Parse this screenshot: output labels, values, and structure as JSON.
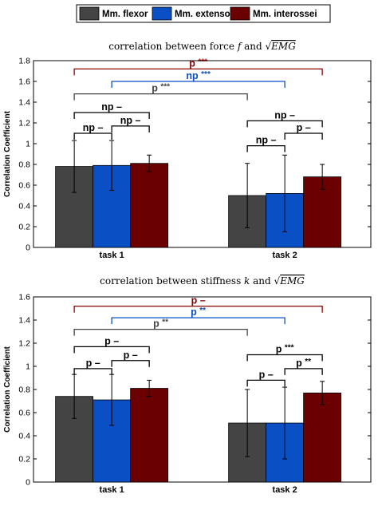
{
  "legend": {
    "entries": [
      {
        "label": "Mm. flexor",
        "color": "#444444"
      },
      {
        "label": "Mm. extensor",
        "color": "#0a4fc4"
      },
      {
        "label": "Mm. interossei",
        "color": "#6b0000"
      }
    ]
  },
  "chart_data": [
    {
      "type": "bar",
      "title": {
        "prefix": "correlation between force ",
        "var": "f",
        "mid": " and ",
        "sqrt": "√",
        "sqrt_arg": "EMG"
      },
      "ylabel": "Correlation Coefficient",
      "ylim": [
        0,
        1.8
      ],
      "yticks": [
        "0",
        "0.2",
        "0.4",
        "0.6",
        "0.8",
        "1",
        "1.2",
        "1.4",
        "1.6",
        "1.8"
      ],
      "categories": [
        "task 1",
        "task 2"
      ],
      "series": [
        {
          "name": "Mm. flexor",
          "values": [
            0.78,
            0.5
          ],
          "err": [
            0.25,
            0.31
          ]
        },
        {
          "name": "Mm. extensor",
          "values": [
            0.79,
            0.52
          ],
          "err": [
            0.24,
            0.37
          ]
        },
        {
          "name": "Mm. interossei",
          "values": [
            0.81,
            0.68
          ],
          "err": [
            0.08,
            0.12
          ]
        }
      ],
      "brackets": [
        {
          "from": [
            0,
            0
          ],
          "to": [
            1,
            2
          ],
          "level": 1.72,
          "test": "p",
          "stars": "***",
          "color": "#8b0000"
        },
        {
          "from": [
            0,
            1
          ],
          "to": [
            1,
            1
          ],
          "level": 1.6,
          "test": "np",
          "stars": "***",
          "color": "#0a4fc4"
        },
        {
          "from": [
            0,
            0
          ],
          "to": [
            1,
            0
          ],
          "level": 1.48,
          "test": "p",
          "stars": "***",
          "color": "#444444"
        },
        {
          "from": [
            0,
            0
          ],
          "to": [
            0,
            2
          ],
          "level": 1.3,
          "test": "np",
          "stars": "–",
          "color": "#000000"
        },
        {
          "from": [
            0,
            1
          ],
          "to": [
            0,
            2
          ],
          "level": 1.17,
          "test": "np",
          "stars": "–",
          "color": "#000000"
        },
        {
          "from": [
            0,
            0
          ],
          "to": [
            0,
            1
          ],
          "level": 1.1,
          "test": "np",
          "stars": "–",
          "color": "#000000"
        },
        {
          "from": [
            1,
            0
          ],
          "to": [
            1,
            2
          ],
          "level": 1.22,
          "test": "np",
          "stars": "–",
          "color": "#000000"
        },
        {
          "from": [
            1,
            1
          ],
          "to": [
            1,
            2
          ],
          "level": 1.1,
          "test": "p",
          "stars": "–",
          "color": "#000000"
        },
        {
          "from": [
            1,
            0
          ],
          "to": [
            1,
            1
          ],
          "level": 0.98,
          "test": "np",
          "stars": "–",
          "color": "#000000"
        }
      ]
    },
    {
      "type": "bar",
      "title": {
        "prefix": "correlation between stiffness ",
        "var": "k",
        "mid": " and ",
        "sqrt": "√",
        "sqrt_arg": "EMG"
      },
      "ylabel": "Correlation Coefficient",
      "ylim": [
        0,
        1.6
      ],
      "yticks": [
        "0",
        "0.2",
        "0.4",
        "0.6",
        "0.8",
        "1",
        "1.2",
        "1.4",
        "1.6"
      ],
      "categories": [
        "task 1",
        "task 2"
      ],
      "series": [
        {
          "name": "Mm. flexor",
          "values": [
            0.74,
            0.51
          ],
          "err": [
            0.19,
            0.29
          ]
        },
        {
          "name": "Mm. extensor",
          "values": [
            0.71,
            0.51
          ],
          "err": [
            0.22,
            0.31
          ]
        },
        {
          "name": "Mm. interossei",
          "values": [
            0.81,
            0.77
          ],
          "err": [
            0.07,
            0.1
          ]
        }
      ],
      "brackets": [
        {
          "from": [
            0,
            0
          ],
          "to": [
            1,
            2
          ],
          "level": 1.52,
          "test": "p",
          "stars": "–",
          "color": "#8b0000"
        },
        {
          "from": [
            0,
            1
          ],
          "to": [
            1,
            1
          ],
          "level": 1.42,
          "test": "p",
          "stars": "**",
          "color": "#0a4fc4"
        },
        {
          "from": [
            0,
            0
          ],
          "to": [
            1,
            0
          ],
          "level": 1.32,
          "test": "p",
          "stars": "**",
          "color": "#444444"
        },
        {
          "from": [
            0,
            0
          ],
          "to": [
            0,
            2
          ],
          "level": 1.17,
          "test": "p",
          "stars": "–",
          "color": "#000000"
        },
        {
          "from": [
            0,
            1
          ],
          "to": [
            0,
            2
          ],
          "level": 1.05,
          "test": "p",
          "stars": "–",
          "color": "#000000"
        },
        {
          "from": [
            0,
            0
          ],
          "to": [
            0,
            1
          ],
          "level": 0.98,
          "test": "p",
          "stars": "–",
          "color": "#000000"
        },
        {
          "from": [
            1,
            0
          ],
          "to": [
            1,
            2
          ],
          "level": 1.1,
          "test": "p",
          "stars": "***",
          "color": "#000000"
        },
        {
          "from": [
            1,
            1
          ],
          "to": [
            1,
            2
          ],
          "level": 0.98,
          "test": "p",
          "stars": "**",
          "color": "#000000"
        },
        {
          "from": [
            1,
            0
          ],
          "to": [
            1,
            1
          ],
          "level": 0.88,
          "test": "p",
          "stars": "–",
          "color": "#000000"
        }
      ]
    }
  ]
}
